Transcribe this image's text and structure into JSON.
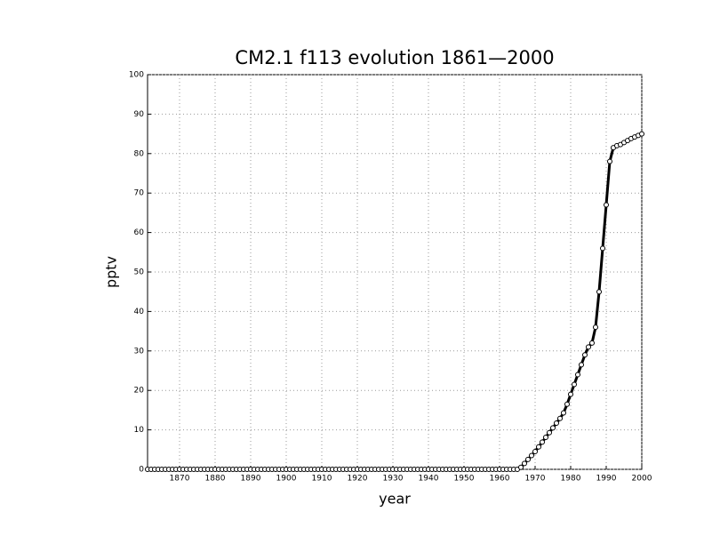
{
  "chart_data": {
    "type": "line",
    "title": "CM2.1 f113 evolution 1861—2000",
    "x_label": "year",
    "y_label": "pptv",
    "x": [
      1861,
      1862,
      1863,
      1864,
      1865,
      1866,
      1867,
      1868,
      1869,
      1870,
      1871,
      1872,
      1873,
      1874,
      1875,
      1876,
      1877,
      1878,
      1879,
      1880,
      1881,
      1882,
      1883,
      1884,
      1885,
      1886,
      1887,
      1888,
      1889,
      1890,
      1891,
      1892,
      1893,
      1894,
      1895,
      1896,
      1897,
      1898,
      1899,
      1900,
      1901,
      1902,
      1903,
      1904,
      1905,
      1906,
      1907,
      1908,
      1909,
      1910,
      1911,
      1912,
      1913,
      1914,
      1915,
      1916,
      1917,
      1918,
      1919,
      1920,
      1921,
      1922,
      1923,
      1924,
      1925,
      1926,
      1927,
      1928,
      1929,
      1930,
      1931,
      1932,
      1933,
      1934,
      1935,
      1936,
      1937,
      1938,
      1939,
      1940,
      1941,
      1942,
      1943,
      1944,
      1945,
      1946,
      1947,
      1948,
      1949,
      1950,
      1951,
      1952,
      1953,
      1954,
      1955,
      1956,
      1957,
      1958,
      1959,
      1960,
      1961,
      1962,
      1963,
      1964,
      1965,
      1966,
      1967,
      1968,
      1969,
      1970,
      1971,
      1972,
      1973,
      1974,
      1975,
      1976,
      1977,
      1978,
      1979,
      1980,
      1981,
      1982,
      1983,
      1984,
      1985,
      1986,
      1987,
      1988,
      1989,
      1990,
      1991,
      1992,
      1993,
      1994,
      1995,
      1996,
      1997,
      1998,
      1999,
      2000
    ],
    "series": [
      {
        "color": "#000000",
        "values": [
          0,
          0,
          0,
          0,
          0,
          0,
          0,
          0,
          0,
          0,
          0,
          0,
          0,
          0,
          0,
          0,
          0,
          0,
          0,
          0,
          0,
          0,
          0,
          0,
          0,
          0,
          0,
          0,
          0,
          0,
          0,
          0,
          0,
          0,
          0,
          0,
          0,
          0,
          0,
          0,
          0,
          0,
          0,
          0,
          0,
          0,
          0,
          0,
          0,
          0,
          0,
          0,
          0,
          0,
          0,
          0,
          0,
          0,
          0,
          0,
          0,
          0,
          0,
          0,
          0,
          0,
          0,
          0,
          0,
          0,
          0,
          0,
          0,
          0,
          0,
          0,
          0,
          0,
          0,
          0,
          0,
          0,
          0,
          0,
          0,
          0,
          0,
          0,
          0,
          0,
          0,
          0,
          0,
          0,
          0,
          0,
          0,
          0,
          0,
          0,
          0,
          0,
          0,
          0,
          0,
          0.5,
          1.5,
          2.5,
          3.5,
          4.5,
          5.7,
          6.9,
          8.1,
          9.3,
          10.5,
          11.7,
          12.9,
          14.3,
          16.5,
          19,
          21.5,
          24,
          26.5,
          29,
          31,
          32,
          36,
          45,
          56,
          67,
          78,
          81.5,
          82,
          82.3,
          82.8,
          83.3,
          83.8,
          84.2,
          84.6,
          85
        ]
      }
    ],
    "xlim": [
      1861,
      2000
    ],
    "xticks": [
      1870,
      1880,
      1890,
      1900,
      1910,
      1920,
      1930,
      1940,
      1950,
      1960,
      1970,
      1980,
      1990,
      2000
    ],
    "ylim": [
      0,
      100
    ],
    "yticks": [
      0,
      10,
      20,
      30,
      40,
      50,
      60,
      70,
      80,
      90,
      100
    ],
    "grid": true
  }
}
